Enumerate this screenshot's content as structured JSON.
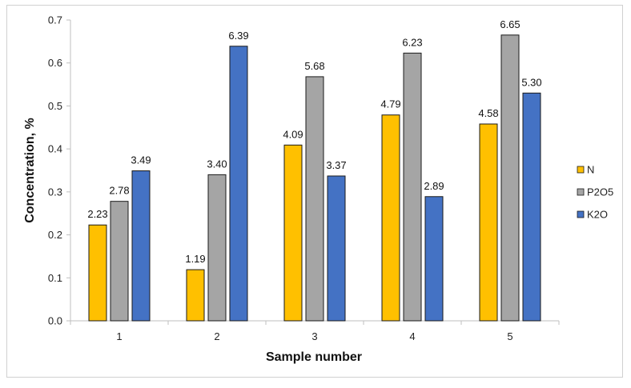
{
  "chart_data": {
    "type": "bar",
    "title": "",
    "xlabel": "Sample number",
    "ylabel": "Concentration, %",
    "ylim": [
      0,
      0.7
    ],
    "yticks": [
      0.0,
      0.1,
      0.2,
      0.3,
      0.4,
      0.5,
      0.6,
      0.7
    ],
    "ytick_labels": [
      "0.0",
      "0.1",
      "0.2",
      "0.3",
      "0.4",
      "0.5",
      "0.6",
      "0.7"
    ],
    "categories": [
      "1",
      "2",
      "3",
      "4",
      "5"
    ],
    "grid": false,
    "legend_position": "right",
    "series": [
      {
        "name": "N",
        "color": "#FFC000",
        "values": [
          0.223,
          0.119,
          0.409,
          0.479,
          0.458
        ],
        "labels": [
          "2.23",
          "1.19",
          "4.09",
          "4.79",
          "4.58"
        ]
      },
      {
        "name": "P2O5",
        "color": "#A5A5A5",
        "values": [
          0.278,
          0.34,
          0.568,
          0.623,
          0.665
        ],
        "labels": [
          "2.78",
          "3.40",
          "5.68",
          "6.23",
          "6.65"
        ]
      },
      {
        "name": "K2O",
        "color": "#4472C4",
        "values": [
          0.349,
          0.639,
          0.337,
          0.289,
          0.53
        ],
        "labels": [
          "3.49",
          "6.39",
          "3.37",
          "2.89",
          "5.30"
        ]
      }
    ]
  }
}
